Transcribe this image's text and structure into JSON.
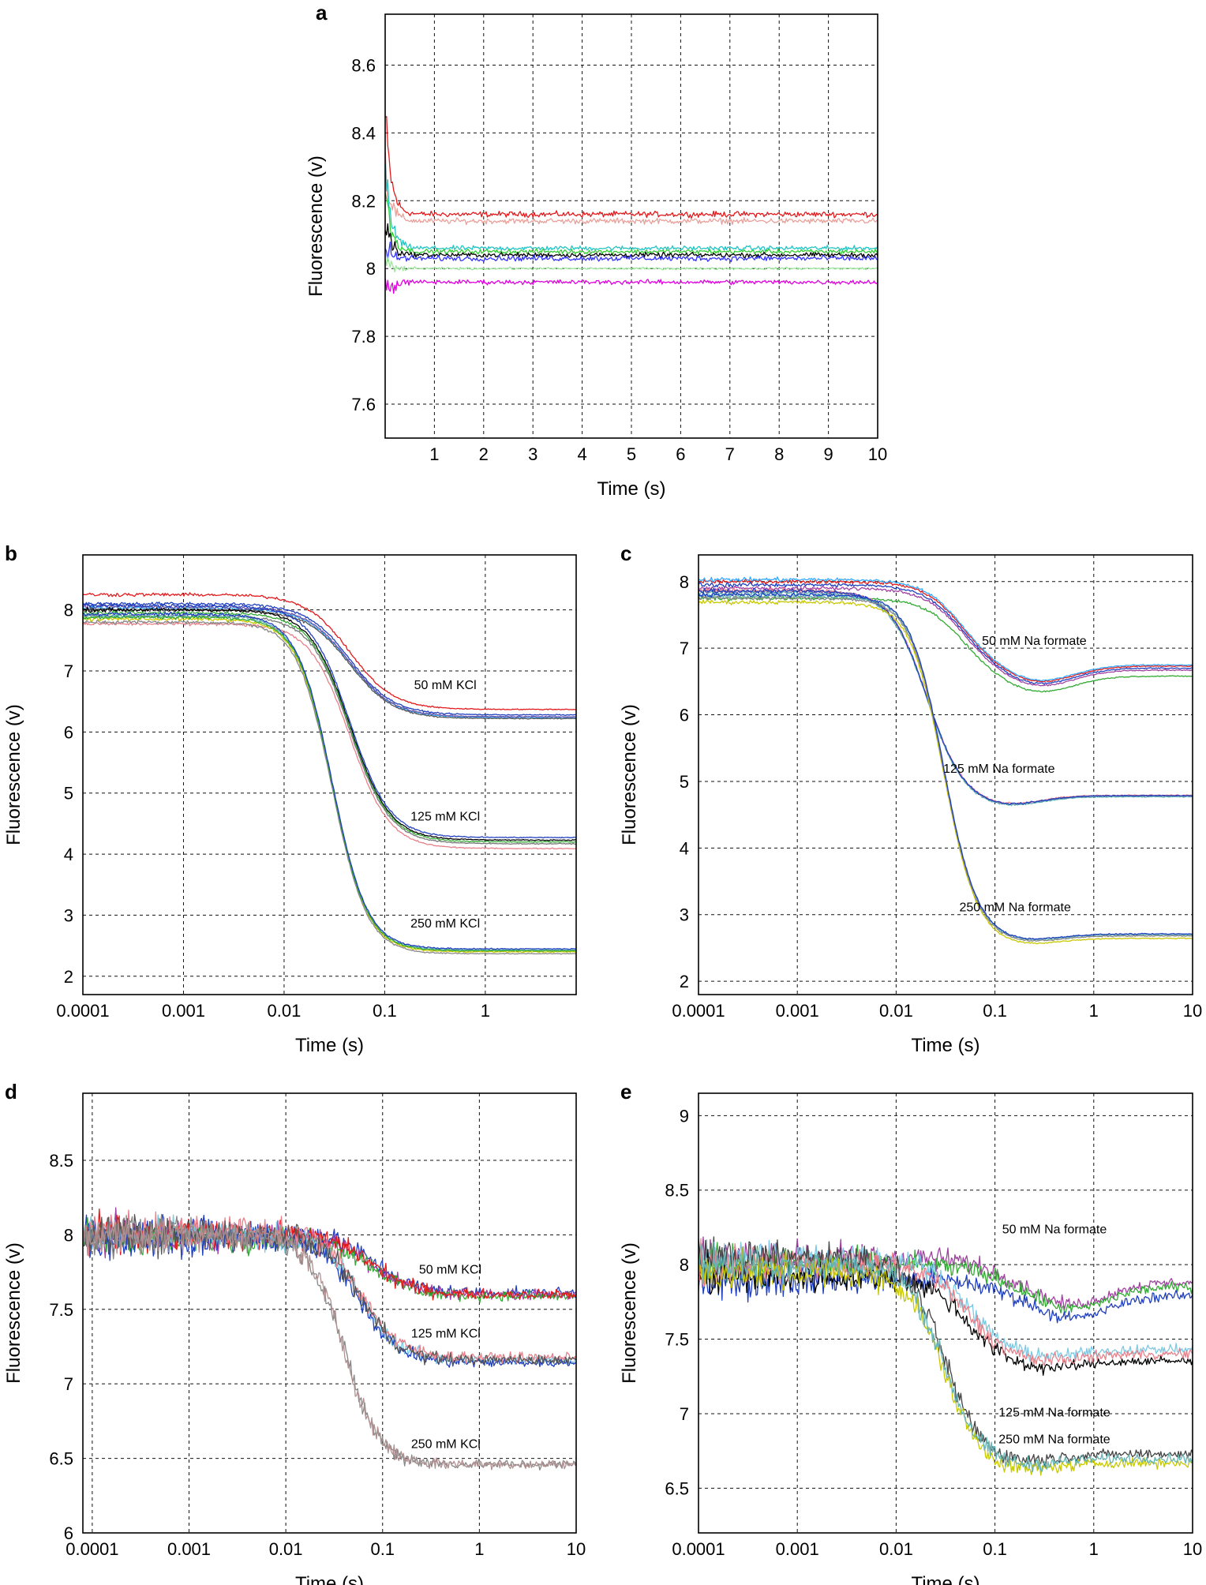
{
  "chart_data": [
    {
      "panel": "a",
      "type": "line",
      "xscale": "linear",
      "xlabel": "Time (s)",
      "ylabel": "Fluorescence (v)",
      "xlim": [
        0,
        10
      ],
      "ylim": [
        7.5,
        8.75
      ],
      "xticks": [
        1,
        2,
        3,
        4,
        5,
        6,
        7,
        8,
        9,
        10
      ],
      "xtick_labels": [
        "1",
        "2",
        "3",
        "4",
        "5",
        "6",
        "7",
        "8",
        "9",
        "10"
      ],
      "yticks": [
        7.6,
        7.8,
        8,
        8.2,
        8.4,
        8.6
      ],
      "ytick_labels": [
        "7.6",
        "7.8",
        "8",
        "8.2",
        "8.4",
        "8.6"
      ],
      "annotations": [],
      "series": [
        {
          "name": "red",
          "color": "#e31a1c",
          "start": 8.45,
          "plateau": 8.16,
          "tau": 0.12,
          "noise": 0.012
        },
        {
          "name": "light red",
          "color": "#e8a09a",
          "start": 8.3,
          "plateau": 8.14,
          "tau": 0.12,
          "noise": 0.012
        },
        {
          "name": "cyan",
          "color": "#22c4c4",
          "start": 8.3,
          "plateau": 8.06,
          "tau": 0.12,
          "noise": 0.01
        },
        {
          "name": "green",
          "color": "#33cc33",
          "start": 8.25,
          "plateau": 8.05,
          "tau": 0.12,
          "noise": 0.01
        },
        {
          "name": "black",
          "color": "#000000",
          "start": 8.15,
          "plateau": 8.04,
          "tau": 0.12,
          "noise": 0.01
        },
        {
          "name": "blue",
          "color": "#3333ff",
          "start": 8.05,
          "plateau": 8.03,
          "tau": 0.12,
          "noise": 0.012
        },
        {
          "name": "light green",
          "color": "#9ae89a",
          "start": 8.0,
          "plateau": 8.0,
          "tau": 0.12,
          "noise": 0.005
        },
        {
          "name": "magenta",
          "color": "#e000e0",
          "start": 7.92,
          "plateau": 7.96,
          "tau": 0.12,
          "noise": 0.01
        }
      ]
    },
    {
      "panel": "b",
      "type": "line",
      "xscale": "log",
      "xlabel": "Time (s)",
      "ylabel": "Fluorescence (v)",
      "xlim": [
        0.0001,
        8
      ],
      "ylim": [
        1.7,
        8.9
      ],
      "xticks": [
        0.0001,
        0.001,
        0.01,
        0.1,
        1
      ],
      "xtick_labels": [
        "0.0001",
        "0.001",
        "0.01",
        "0.1",
        "1"
      ],
      "yticks": [
        2,
        3,
        4,
        5,
        6,
        7,
        8
      ],
      "ytick_labels": [
        "2",
        "3",
        "4",
        "5",
        "6",
        "7",
        "8"
      ],
      "annotations": [
        {
          "text": "50 mM KCl",
          "x": 0.4,
          "y": 6.7
        },
        {
          "text": "125 mM KCl",
          "x": 0.4,
          "y": 4.55
        },
        {
          "text": "250 mM KCl",
          "x": 0.4,
          "y": 2.8
        }
      ],
      "series": [
        {
          "name": "50 mM KCl",
          "start": 8.05,
          "plateau": 6.25,
          "t_half": 0.045,
          "slope": 2.0,
          "noise": 0.03,
          "colors": [
            "#e31a1c",
            "#1f3fbf",
            "#33aaff",
            "#6a51a3",
            "#555555"
          ],
          "offsets": [
            0.2,
            0.05,
            -0.02,
            0.0,
            -0.05
          ]
        },
        {
          "name": "125 mM KCl",
          "start": 7.95,
          "plateau": 4.2,
          "t_half": 0.045,
          "slope": 2.2,
          "noise": 0.03,
          "colors": [
            "#000000",
            "#e8808a",
            "#33aa33",
            "#1f3fbf",
            "#777777"
          ],
          "offsets": [
            0.05,
            -0.18,
            0.0,
            0.12,
            -0.05
          ]
        },
        {
          "name": "250 mM KCl",
          "start": 7.85,
          "plateau": 2.4,
          "t_half": 0.03,
          "slope": 2.5,
          "noise": 0.03,
          "colors": [
            "#c8c800",
            "#66b3b3",
            "#888888",
            "#33aa33",
            "#1f3fbf"
          ],
          "offsets": [
            0.0,
            0.05,
            -0.05,
            0.03,
            0.08
          ]
        }
      ]
    },
    {
      "panel": "c",
      "type": "line",
      "xscale": "log",
      "xlabel": "Time (s)",
      "ylabel": "Fluorescence (v)",
      "xlim": [
        0.0001,
        10
      ],
      "ylim": [
        1.8,
        8.4
      ],
      "xticks": [
        0.0001,
        0.001,
        0.01,
        0.1,
        1,
        10
      ],
      "xtick_labels": [
        "0.0001",
        "0.001",
        "0.01",
        "0.1",
        "1",
        "10"
      ],
      "yticks": [
        2,
        3,
        4,
        5,
        6,
        7,
        8
      ],
      "ytick_labels": [
        "2",
        "3",
        "4",
        "5",
        "6",
        "7",
        "8"
      ],
      "annotations": [
        {
          "text": "50 mM Na formate",
          "x": 0.25,
          "y": 7.05
        },
        {
          "text": "125 mM Na formate",
          "x": 0.11,
          "y": 5.13
        },
        {
          "text": "250 mM Na formate",
          "x": 0.16,
          "y": 3.05
        }
      ],
      "series": [
        {
          "name": "50 mM Na formate",
          "start": 7.95,
          "plateau": 6.7,
          "t_half": 0.045,
          "slope": 2.2,
          "noise": 0.03,
          "dip": 0.25,
          "colors": [
            "#e31a1c",
            "#1f3fbf",
            "#33aaff",
            "#a040a0",
            "#33aa33"
          ],
          "offsets": [
            0.05,
            0.0,
            0.08,
            -0.05,
            -0.2
          ]
        },
        {
          "name": "125 mM Na formate",
          "start": 7.85,
          "plateau": 4.78,
          "t_half": 0.02,
          "slope": 2.4,
          "noise": 0.03,
          "dip": 0.15,
          "colors": [
            "#6a51a3",
            "#e8808a",
            "#66b3b3",
            "#1f3fbf"
          ],
          "offsets": [
            0.0,
            0.02,
            -0.02,
            0.01
          ]
        },
        {
          "name": "250 mM Na formate",
          "start": 7.75,
          "plateau": 2.68,
          "t_half": 0.03,
          "slope": 2.6,
          "noise": 0.03,
          "dip": 0.1,
          "colors": [
            "#c8c800",
            "#66b3b3",
            "#888888",
            "#1f3fbf"
          ],
          "offsets": [
            -0.06,
            0.03,
            0.0,
            0.05
          ]
        }
      ]
    },
    {
      "panel": "d",
      "type": "line",
      "xscale": "log",
      "xlabel": "Time (s)",
      "ylabel": "Fluorescence (v)",
      "xlim": [
        8e-05,
        10
      ],
      "ylim": [
        6,
        8.95
      ],
      "xticks": [
        0.0001,
        0.001,
        0.01,
        0.1,
        1,
        10
      ],
      "xtick_labels": [
        "0.0001",
        "0.001",
        "0.01",
        "0.1",
        "1",
        "10"
      ],
      "yticks": [
        6,
        6.5,
        7,
        7.5,
        8,
        8.5
      ],
      "ytick_labels": [
        "6",
        "6.5",
        "7",
        "7.5",
        "8",
        "8.5"
      ],
      "annotations": [
        {
          "text": "50 mM KCl",
          "x": 0.5,
          "y": 7.74
        },
        {
          "text": "125 mM KCl",
          "x": 0.45,
          "y": 7.31
        },
        {
          "text": "250 mM KCl",
          "x": 0.45,
          "y": 6.57
        }
      ],
      "series": [
        {
          "name": "50 mM KCl",
          "start": 8.0,
          "plateau": 7.6,
          "t_half": 0.08,
          "slope": 2.0,
          "noise": 0.12,
          "colors": [
            "#1f3fbf",
            "#a040a0",
            "#33aa33",
            "#e31a1c"
          ],
          "offsets": [
            0.02,
            0.0,
            -0.02,
            0.0
          ]
        },
        {
          "name": "125 mM KCl",
          "start": 8.0,
          "plateau": 7.16,
          "t_half": 0.06,
          "slope": 2.2,
          "noise": 0.12,
          "colors": [
            "#7ec8e3",
            "#1f3fbf",
            "#e8808a",
            "#555555"
          ],
          "offsets": [
            0.0,
            -0.03,
            0.03,
            0.0
          ]
        },
        {
          "name": "250 mM KCl",
          "start": 8.0,
          "plateau": 6.46,
          "t_half": 0.04,
          "slope": 2.4,
          "noise": 0.12,
          "colors": [
            "#888888",
            "#b09090"
          ],
          "offsets": [
            0.0,
            0.0
          ]
        }
      ]
    },
    {
      "panel": "e",
      "type": "line",
      "xscale": "log",
      "xlabel": "Time (s)",
      "ylabel": "Fluorescence (v)",
      "xlim": [
        0.0001,
        10
      ],
      "ylim": [
        6.2,
        9.15
      ],
      "xticks": [
        0.0001,
        0.001,
        0.01,
        0.1,
        1,
        10
      ],
      "xtick_labels": [
        "0.0001",
        "0.001",
        "0.01",
        "0.1",
        "1",
        "10"
      ],
      "yticks": [
        6.5,
        7,
        7.5,
        8,
        8.5,
        9
      ],
      "ytick_labels": [
        "6.5",
        "7",
        "7.5",
        "8",
        "8.5",
        "9"
      ],
      "annotations": [
        {
          "text": "50 mM Na formate",
          "x": 0.4,
          "y": 8.21
        },
        {
          "text": "125 mM Na formate",
          "x": 0.4,
          "y": 6.98
        },
        {
          "text": "250 mM Na formate",
          "x": 0.4,
          "y": 6.8
        }
      ],
      "series": [
        {
          "name": "50 mM Na formate",
          "start": 8.0,
          "plateau": 7.85,
          "t_half": 0.1,
          "slope": 2.0,
          "noise": 0.12,
          "dip": 0.15,
          "colors": [
            "#a040a0",
            "#33aa33",
            "#1f3fbf"
          ],
          "offsets": [
            0.05,
            0.0,
            -0.1
          ]
        },
        {
          "name": "125 mM Na formate",
          "start": 8.0,
          "plateau": 7.4,
          "t_half": 0.05,
          "slope": 2.2,
          "noise": 0.12,
          "dip": 0.05,
          "colors": [
            "#7ec8e3",
            "#000000",
            "#e8808a"
          ],
          "offsets": [
            0.05,
            -0.08,
            0.0
          ]
        },
        {
          "name": "250 mM Na formate",
          "start": 8.0,
          "plateau": 6.7,
          "t_half": 0.03,
          "slope": 2.4,
          "noise": 0.12,
          "dip": 0.05,
          "colors": [
            "#444444",
            "#c8c800",
            "#66b3b3"
          ],
          "offsets": [
            0.05,
            -0.05,
            0.0
          ]
        }
      ]
    }
  ]
}
